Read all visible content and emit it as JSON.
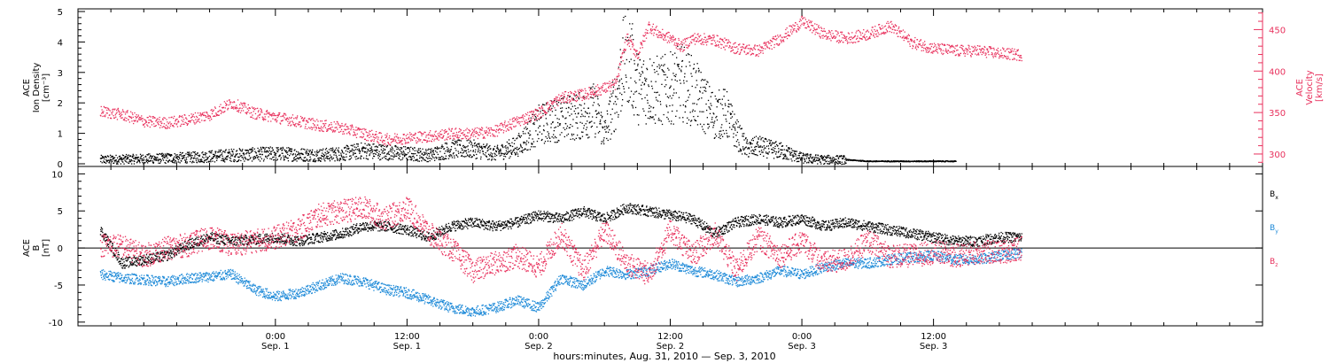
{
  "chart_data": [
    {
      "type": "scatter",
      "panel": "top",
      "ylabel": [
        "ACE",
        "Ion Density",
        "[cm⁻³]"
      ],
      "ylabel_right": [
        "ACE",
        "Velocity",
        "[km/s]"
      ],
      "ylim": [
        0,
        5
      ],
      "yticks": [
        0,
        1,
        2,
        3,
        4,
        5
      ],
      "ylim_right": [
        285,
        475
      ],
      "yticks_right": [
        300,
        350,
        400,
        450
      ],
      "series": [
        {
          "axis": "left",
          "color": "#000000",
          "points": [
            [
              -16,
              0.15
            ],
            [
              -12,
              0.18
            ],
            [
              -8,
              0.22
            ],
            [
              -4,
              0.3
            ],
            [
              0,
              0.35
            ],
            [
              2,
              0.32
            ],
            [
              4,
              0.3
            ],
            [
              6,
              0.35
            ],
            [
              8,
              0.45
            ],
            [
              10,
              0.4
            ],
            [
              12,
              0.35
            ],
            [
              14,
              0.3
            ],
            [
              16,
              0.5
            ],
            [
              18,
              0.5
            ],
            [
              20,
              0.35
            ],
            [
              22,
              0.6
            ],
            [
              24,
              1.3
            ],
            [
              26,
              1.5
            ],
            [
              28,
              1.6
            ],
            [
              29,
              1.8
            ],
            [
              30,
              1.0
            ],
            [
              31,
              2.2
            ],
            [
              32,
              3.8
            ],
            [
              33,
              2.5
            ],
            [
              34,
              2.5
            ],
            [
              35,
              2.4
            ],
            [
              36,
              2.5
            ],
            [
              37,
              2.7
            ],
            [
              38,
              2.4
            ],
            [
              39,
              2.0
            ],
            [
              40,
              1.6
            ],
            [
              41,
              1.7
            ],
            [
              42,
              1.0
            ],
            [
              43,
              0.5
            ],
            [
              44,
              0.6
            ],
            [
              45,
              0.5
            ],
            [
              46,
              0.45
            ],
            [
              48,
              0.2
            ],
            [
              50,
              0.15
            ],
            [
              52,
              0.15
            ],
            [
              54,
              0.1
            ],
            [
              56,
              0.1
            ],
            [
              58,
              0.1
            ],
            [
              60,
              0.1
            ],
            [
              62,
              0.1
            ]
          ]
        },
        {
          "axis": "right",
          "color": "#e8305c",
          "points": [
            [
              -16,
              352
            ],
            [
              -14,
              348
            ],
            [
              -12,
              340
            ],
            [
              -10,
              338
            ],
            [
              -8,
              342
            ],
            [
              -6,
              348
            ],
            [
              -4,
              362
            ],
            [
              -2,
              350
            ],
            [
              0,
              345
            ],
            [
              2,
              340
            ],
            [
              4,
              335
            ],
            [
              6,
              332
            ],
            [
              8,
              325
            ],
            [
              10,
              318
            ],
            [
              12,
              320
            ],
            [
              14,
              322
            ],
            [
              16,
              325
            ],
            [
              18,
              325
            ],
            [
              20,
              328
            ],
            [
              22,
              340
            ],
            [
              24,
              350
            ],
            [
              26,
              368
            ],
            [
              28,
              372
            ],
            [
              30,
              380
            ],
            [
              31,
              385
            ],
            [
              32,
              440
            ],
            [
              33,
              420
            ],
            [
              34,
              455
            ],
            [
              35,
              445
            ],
            [
              36,
              440
            ],
            [
              37,
              430
            ],
            [
              38,
              440
            ],
            [
              40,
              438
            ],
            [
              42,
              428
            ],
            [
              44,
              425
            ],
            [
              46,
              440
            ],
            [
              48,
              460
            ],
            [
              50,
              445
            ],
            [
              52,
              440
            ],
            [
              54,
              445
            ],
            [
              56,
              455
            ],
            [
              58,
              435
            ],
            [
              60,
              428
            ],
            [
              62,
              425
            ],
            [
              64,
              425
            ],
            [
              66,
              422
            ],
            [
              68,
              420
            ]
          ]
        }
      ]
    },
    {
      "type": "scatter",
      "panel": "bottom",
      "ylabel": [
        "ACE",
        "B",
        "[nT]"
      ],
      "ylim": [
        -10.5,
        11
      ],
      "yticks": [
        -10,
        -5,
        0,
        5,
        10
      ],
      "legend": [
        {
          "name": "Bx",
          "base": "B",
          "sub": "x",
          "color": "#000000"
        },
        {
          "name": "By",
          "base": "B",
          "sub": "y",
          "color": "#1e8ad8"
        },
        {
          "name": "Bz",
          "base": "B",
          "sub": "z",
          "color": "#e8305c"
        }
      ],
      "series": [
        {
          "name": "Bx",
          "color": "#000000",
          "points": [
            [
              -16,
              2.5
            ],
            [
              -14,
              -2.0
            ],
            [
              -12,
              -1.5
            ],
            [
              -10,
              -1.0
            ],
            [
              -8,
              0.5
            ],
            [
              -6,
              1.5
            ],
            [
              -4,
              1.0
            ],
            [
              -2,
              1.2
            ],
            [
              0,
              1.5
            ],
            [
              2,
              1.0
            ],
            [
              4,
              1.5
            ],
            [
              6,
              2.0
            ],
            [
              8,
              3.0
            ],
            [
              10,
              3.0
            ],
            [
              12,
              2.5
            ],
            [
              14,
              1.5
            ],
            [
              16,
              3.0
            ],
            [
              18,
              3.5
            ],
            [
              20,
              3.0
            ],
            [
              22,
              3.5
            ],
            [
              24,
              4.5
            ],
            [
              26,
              4.0
            ],
            [
              28,
              5.0
            ],
            [
              30,
              4.0
            ],
            [
              32,
              5.5
            ],
            [
              34,
              5.0
            ],
            [
              36,
              4.5
            ],
            [
              38,
              4.0
            ],
            [
              40,
              2.0
            ],
            [
              42,
              3.5
            ],
            [
              44,
              4.0
            ],
            [
              46,
              3.5
            ],
            [
              48,
              4.0
            ],
            [
              50,
              3.0
            ],
            [
              52,
              3.5
            ],
            [
              54,
              3.0
            ],
            [
              56,
              2.5
            ],
            [
              58,
              2.0
            ],
            [
              60,
              1.5
            ],
            [
              62,
              1.0
            ],
            [
              64,
              1.0
            ],
            [
              66,
              1.5
            ],
            [
              68,
              1.5
            ]
          ]
        },
        {
          "name": "By",
          "color": "#1e8ad8",
          "points": [
            [
              -16,
              -3.5
            ],
            [
              -14,
              -4.0
            ],
            [
              -12,
              -4.2
            ],
            [
              -10,
              -4.5
            ],
            [
              -8,
              -4.0
            ],
            [
              -6,
              -3.8
            ],
            [
              -4,
              -3.5
            ],
            [
              -2,
              -5.5
            ],
            [
              0,
              -6.5
            ],
            [
              2,
              -6.0
            ],
            [
              4,
              -5.0
            ],
            [
              6,
              -4.0
            ],
            [
              8,
              -4.5
            ],
            [
              10,
              -5.5
            ],
            [
              12,
              -6.0
            ],
            [
              14,
              -7.0
            ],
            [
              16,
              -8.0
            ],
            [
              18,
              -8.5
            ],
            [
              20,
              -8.0
            ],
            [
              22,
              -7.0
            ],
            [
              24,
              -8.0
            ],
            [
              26,
              -4.0
            ],
            [
              28,
              -5.0
            ],
            [
              30,
              -3.0
            ],
            [
              32,
              -3.5
            ],
            [
              34,
              -3.0
            ],
            [
              36,
              -2.0
            ],
            [
              38,
              -3.0
            ],
            [
              40,
              -3.5
            ],
            [
              42,
              -4.5
            ],
            [
              44,
              -4.0
            ],
            [
              46,
              -3.0
            ],
            [
              48,
              -3.5
            ],
            [
              50,
              -2.5
            ],
            [
              52,
              -2.0
            ],
            [
              54,
              -2.0
            ],
            [
              56,
              -1.5
            ],
            [
              58,
              -1.2
            ],
            [
              60,
              -1.0
            ],
            [
              62,
              -1.5
            ],
            [
              64,
              -1.5
            ],
            [
              66,
              -1.0
            ],
            [
              68,
              -0.5
            ]
          ]
        },
        {
          "name": "Bz",
          "color": "#e8305c",
          "points": [
            [
              -16,
              0.5
            ],
            [
              -14,
              0.3
            ],
            [
              -12,
              -1.0
            ],
            [
              -10,
              0.0
            ],
            [
              -8,
              0.5
            ],
            [
              -6,
              1.5
            ],
            [
              -4,
              0.5
            ],
            [
              -2,
              1.0
            ],
            [
              0,
              1.5
            ],
            [
              2,
              2.5
            ],
            [
              4,
              4.5
            ],
            [
              6,
              5.0
            ],
            [
              8,
              5.5
            ],
            [
              10,
              4.0
            ],
            [
              12,
              5.5
            ],
            [
              14,
              2.0
            ],
            [
              16,
              0.0
            ],
            [
              18,
              -3.0
            ],
            [
              20,
              -2.0
            ],
            [
              22,
              -1.0
            ],
            [
              24,
              -2.5
            ],
            [
              26,
              2.0
            ],
            [
              28,
              -3.0
            ],
            [
              30,
              2.5
            ],
            [
              32,
              -2.0
            ],
            [
              34,
              -3.5
            ],
            [
              36,
              2.5
            ],
            [
              38,
              -1.0
            ],
            [
              40,
              2.0
            ],
            [
              42,
              -3.0
            ],
            [
              44,
              1.5
            ],
            [
              46,
              -1.0
            ],
            [
              48,
              1.0
            ],
            [
              50,
              -2.0
            ],
            [
              52,
              -1.5
            ],
            [
              54,
              1.0
            ],
            [
              56,
              -1.0
            ],
            [
              58,
              -1.0
            ],
            [
              60,
              -0.5
            ],
            [
              62,
              -1.0
            ],
            [
              64,
              -0.5
            ],
            [
              66,
              -0.5
            ],
            [
              68,
              0.0
            ]
          ]
        }
      ]
    }
  ],
  "x_axis": {
    "xlim": [
      -18,
      90
    ],
    "ticks": [
      {
        "x": 0,
        "time": "0:00",
        "date": "Sep. 1"
      },
      {
        "x": 12,
        "time": "12:00",
        "date": "Sep. 1"
      },
      {
        "x": 24,
        "time": "0:00",
        "date": "Sep. 2"
      },
      {
        "x": 36,
        "time": "12:00",
        "date": "Sep. 2"
      },
      {
        "x": 48,
        "time": "0:00",
        "date": "Sep. 3"
      },
      {
        "x": 60,
        "time": "12:00",
        "date": "Sep. 3"
      }
    ],
    "xlabel": "hours:minutes, Aug. 31, 2010 — Sep.  3, 2010"
  },
  "colors": {
    "black": "#000000",
    "magenta": "#e8305c",
    "blue": "#1e8ad8",
    "axis_right": "#e8305c"
  }
}
